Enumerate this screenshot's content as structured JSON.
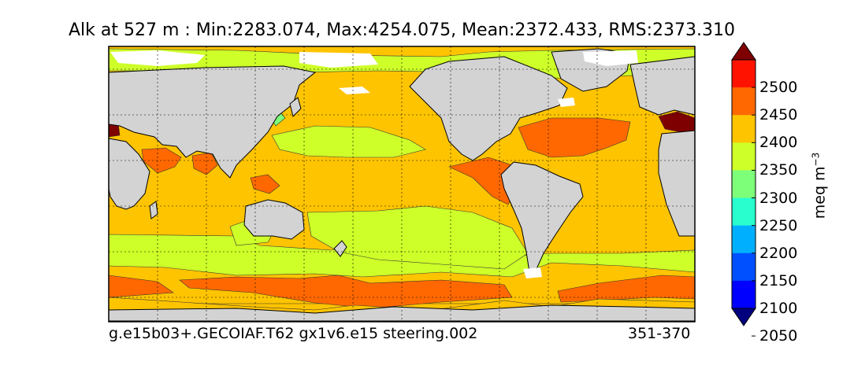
{
  "title": "Alk at 527 m : Min:2283.074, Max:4254.075, Mean:2372.433, RMS:2373.310",
  "footer": {
    "run": "g.e15b03+.GECOIAF.T62 gx1v6.e15 steering.002",
    "period": "351-370"
  },
  "colorbar": {
    "ticks": [
      "2500",
      "2450",
      "2400",
      "2350",
      "2300",
      "2250",
      "2200",
      "2150",
      "2100",
      "2050"
    ],
    "units": "meq m",
    "units_exp": "−3",
    "bands": [
      {
        "range": "<2050",
        "color": "#00007f"
      },
      {
        "range": "2050-2100",
        "color": "#0000ff"
      },
      {
        "range": "2100-2150",
        "color": "#0050ff"
      },
      {
        "range": "2150-2200",
        "color": "#00b0ff"
      },
      {
        "range": "2200-2250",
        "color": "#29ffce"
      },
      {
        "range": "2250-2300",
        "color": "#7dff7a"
      },
      {
        "range": "2300-2350",
        "color": "#ceff29"
      },
      {
        "range": "2350-2400",
        "color": "#ffc400"
      },
      {
        "range": "2400-2450",
        "color": "#ff6800"
      },
      {
        "range": "2450-2500",
        "color": "#ff1300"
      },
      {
        "range": ">2500",
        "color": "#7f0000"
      }
    ]
  },
  "colors": {
    "land": "#d3d3d3",
    "sea_ice": "#ffffff",
    "background_ocean": "#ffc400"
  }
}
